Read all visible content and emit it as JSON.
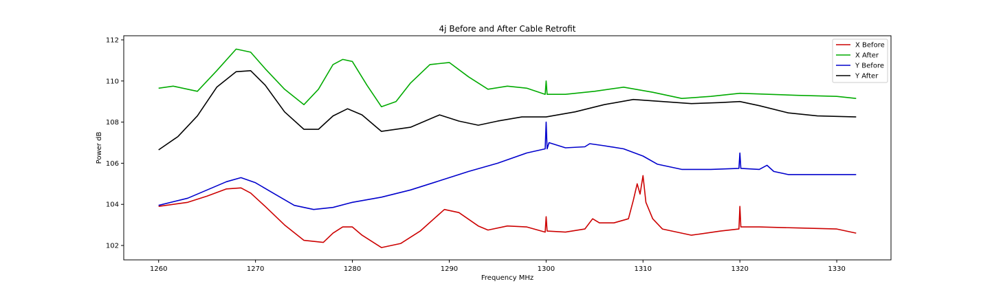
{
  "chart_data": {
    "type": "line",
    "title": "4j Before and After Cable Retrofit",
    "xlabel": "Frequency MHz",
    "ylabel": "Power dB",
    "xlim": [
      1256.4,
      1335.6
    ],
    "ylim": [
      101.3,
      112.2
    ],
    "xticks": [
      1260,
      1270,
      1280,
      1290,
      1300,
      1310,
      1320,
      1330
    ],
    "yticks": [
      102,
      104,
      106,
      108,
      110,
      112
    ],
    "grid": false,
    "legend_position": "top-right",
    "series": [
      {
        "name": "X Before",
        "color": "#cc0000",
        "x": [
          1260,
          1263,
          1265,
          1267,
          1268.5,
          1269.5,
          1271,
          1273,
          1275,
          1277,
          1278,
          1279,
          1280,
          1281,
          1283,
          1285,
          1287,
          1289.5,
          1291,
          1293,
          1294,
          1296,
          1298,
          1299.9,
          1300,
          1300.1,
          1302,
          1304,
          1304.8,
          1305.5,
          1307,
          1308.5,
          1309,
          1309.4,
          1309.7,
          1310,
          1310.3,
          1311,
          1312,
          1315,
          1318,
          1319.9,
          1320,
          1320.1,
          1322,
          1326,
          1330,
          1332
        ],
        "y": [
          103.9,
          104.1,
          104.4,
          104.75,
          104.8,
          104.55,
          103.9,
          103.0,
          102.25,
          102.15,
          102.6,
          102.9,
          102.9,
          102.5,
          101.9,
          102.1,
          102.7,
          103.75,
          103.6,
          102.95,
          102.75,
          102.95,
          102.9,
          102.65,
          103.4,
          102.7,
          102.65,
          102.8,
          103.3,
          103.1,
          103.1,
          103.3,
          104.2,
          105.0,
          104.5,
          105.4,
          104.1,
          103.3,
          102.8,
          102.5,
          102.7,
          102.8,
          103.9,
          102.9,
          102.9,
          102.85,
          102.8,
          102.6
        ]
      },
      {
        "name": "X After",
        "color": "#00aa00",
        "x": [
          1260,
          1261.5,
          1263,
          1264,
          1266,
          1268,
          1269.5,
          1271,
          1273,
          1275,
          1276.5,
          1278,
          1279,
          1280,
          1281.5,
          1283,
          1284.5,
          1286,
          1288,
          1290,
          1292,
          1294,
          1296,
          1298,
          1299.9,
          1300,
          1300.1,
          1302,
          1305,
          1308,
          1311,
          1314,
          1317,
          1320,
          1323,
          1326,
          1330,
          1332
        ],
        "y": [
          109.65,
          109.75,
          109.6,
          109.5,
          110.5,
          111.55,
          111.4,
          110.6,
          109.6,
          108.85,
          109.6,
          110.8,
          111.05,
          110.95,
          109.8,
          108.75,
          109.0,
          109.9,
          110.8,
          110.9,
          110.2,
          109.6,
          109.75,
          109.65,
          109.35,
          110.0,
          109.35,
          109.35,
          109.5,
          109.7,
          109.45,
          109.15,
          109.25,
          109.4,
          109.35,
          109.3,
          109.25,
          109.15
        ]
      },
      {
        "name": "Y Before",
        "color": "#0000cc",
        "x": [
          1260,
          1263,
          1265,
          1267,
          1268.5,
          1270,
          1272,
          1274,
          1276,
          1278,
          1280,
          1283,
          1286,
          1289,
          1292,
          1295,
          1298,
          1299.9,
          1300,
          1300.1,
          1300.3,
          1302,
          1304,
          1304.5,
          1306,
          1308,
          1310,
          1311.5,
          1312.5,
          1314,
          1317,
          1319.9,
          1320,
          1320.1,
          1322,
          1322.8,
          1323.5,
          1325,
          1328,
          1332
        ],
        "y": [
          103.95,
          104.3,
          104.7,
          105.1,
          105.3,
          105.05,
          104.5,
          103.95,
          103.75,
          103.85,
          104.1,
          104.35,
          104.7,
          105.15,
          105.6,
          106.0,
          106.5,
          106.7,
          108.0,
          106.7,
          107.0,
          106.75,
          106.8,
          106.95,
          106.85,
          106.7,
          106.35,
          105.95,
          105.85,
          105.7,
          105.7,
          105.75,
          106.5,
          105.75,
          105.7,
          105.9,
          105.6,
          105.45,
          105.45,
          105.45
        ]
      },
      {
        "name": "Y After",
        "color": "#000000",
        "x": [
          1260,
          1262,
          1264,
          1266,
          1268,
          1269.5,
          1271,
          1273,
          1275,
          1276.5,
          1278,
          1279.5,
          1281,
          1283,
          1286,
          1289,
          1291,
          1293,
          1295,
          1297.5,
          1300,
          1303,
          1306,
          1309,
          1312,
          1315,
          1318,
          1320,
          1322,
          1325,
          1328,
          1332
        ],
        "y": [
          106.65,
          107.3,
          108.3,
          109.7,
          110.45,
          110.5,
          109.8,
          108.5,
          107.65,
          107.65,
          108.3,
          108.65,
          108.35,
          107.55,
          107.75,
          108.35,
          108.05,
          107.85,
          108.05,
          108.25,
          108.25,
          108.5,
          108.85,
          109.1,
          109.0,
          108.9,
          108.95,
          109.0,
          108.8,
          108.45,
          108.3,
          108.25
        ]
      }
    ]
  }
}
